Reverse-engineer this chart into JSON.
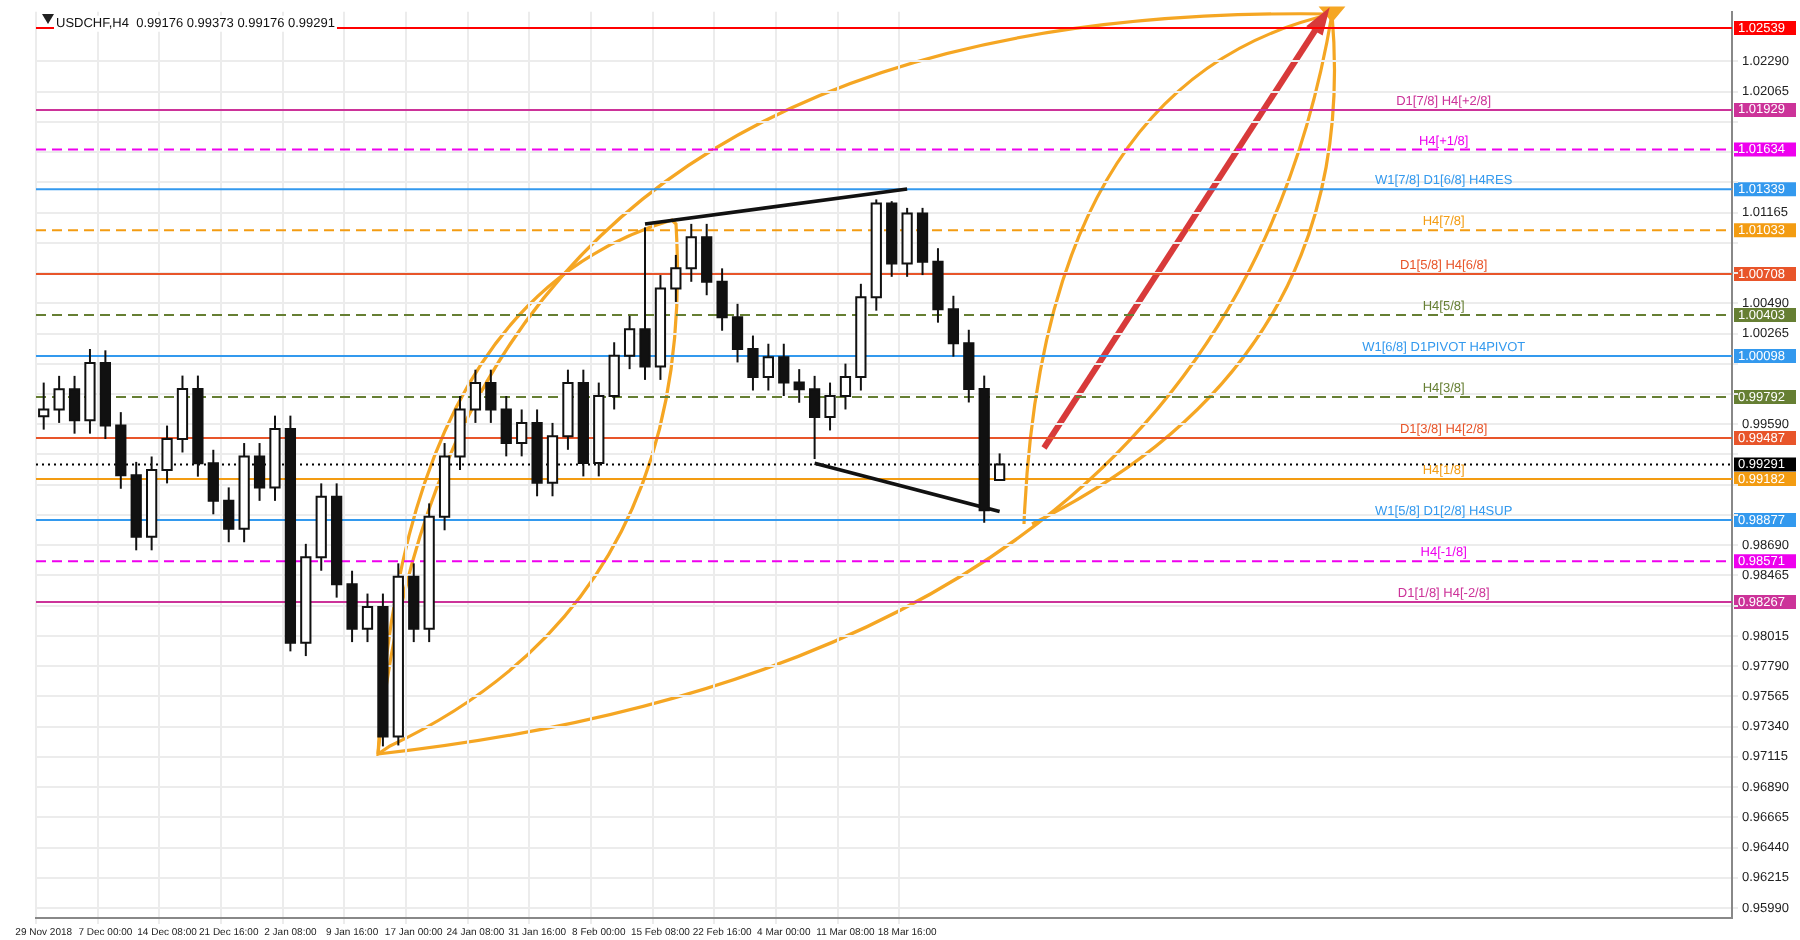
{
  "chart_data": {
    "type": "candlestick",
    "title": "USDCHF,H4  0.99176 0.99373 0.99176 0.99291",
    "categories": [
      "29 Nov 2018",
      null,
      null,
      null,
      "7 Dec 00:00",
      null,
      null,
      null,
      "14 Dec 08:00",
      null,
      null,
      null,
      "21 Dec 16:00",
      null,
      null,
      null,
      "2 Jan 08:00",
      null,
      null,
      null,
      "9 Jan 16:00",
      null,
      null,
      null,
      "17 Jan 00:00",
      null,
      null,
      null,
      "24 Jan 08:00",
      null,
      null,
      null,
      "31 Jan 16:00",
      null,
      null,
      null,
      "8 Feb 00:00",
      null,
      null,
      null,
      "15 Feb 08:00",
      null,
      null,
      null,
      "22 Feb 16:00",
      null,
      null,
      null,
      "4 Mar 00:00",
      null,
      null,
      null,
      "11 Mar 08:00",
      null,
      null,
      null,
      "18 Mar 16:00",
      null,
      null,
      null,
      null,
      null,
      null,
      null,
      null,
      null,
      null,
      null,
      null,
      null,
      null,
      null,
      null,
      null,
      null,
      null,
      null,
      null,
      null,
      null,
      null,
      null,
      null,
      null,
      null,
      null,
      null,
      null,
      null,
      null,
      null,
      null,
      null,
      null,
      null,
      null,
      null,
      null,
      null,
      null,
      null,
      null,
      null,
      null,
      null,
      null,
      null,
      null,
      null,
      null
    ],
    "ohlc": [
      [
        0.9965,
        0.999,
        0.9955,
        0.997
      ],
      [
        0.997,
        0.9995,
        0.996,
        0.9985
      ],
      [
        0.9985,
        0.9995,
        0.9952,
        0.9962
      ],
      [
        0.9962,
        1.0015,
        0.9952,
        1.00045
      ],
      [
        1.00045,
        1.0014,
        0.9948,
        0.9958
      ],
      [
        0.9958,
        0.9968,
        0.9911,
        0.9921
      ],
      [
        0.9921,
        0.9931,
        0.98652,
        0.98752
      ],
      [
        0.98752,
        0.9935,
        0.98652,
        0.9925
      ],
      [
        0.9925,
        0.9958,
        0.9915,
        0.9948
      ],
      [
        0.9948,
        0.99952,
        0.9938,
        0.99852
      ],
      [
        0.99852,
        0.99952,
        0.992,
        0.993
      ],
      [
        0.993,
        0.994,
        0.9892,
        0.9902
      ],
      [
        0.9902,
        0.9912,
        0.98712,
        0.98812
      ],
      [
        0.98812,
        0.9945,
        0.98712,
        0.9935
      ],
      [
        0.9935,
        0.9945,
        0.9902,
        0.9912
      ],
      [
        0.9912,
        0.99654,
        0.9902,
        0.99554
      ],
      [
        0.99554,
        0.99654,
        0.979,
        0.97965
      ],
      [
        0.97965,
        0.987,
        0.97865,
        0.986
      ],
      [
        0.986,
        0.9915,
        0.985,
        0.9905
      ],
      [
        0.9905,
        0.9915,
        0.983,
        0.984
      ],
      [
        0.984,
        0.985,
        0.97969,
        0.98069
      ],
      [
        0.98069,
        0.9833,
        0.97969,
        0.9823
      ],
      [
        0.9823,
        0.9833,
        0.97193,
        0.97267
      ],
      [
        0.97267,
        0.98555,
        0.972,
        0.98455
      ],
      [
        0.98455,
        0.98555,
        0.97969,
        0.98069
      ],
      [
        0.98069,
        0.99001,
        0.97969,
        0.98901
      ],
      [
        0.98901,
        0.9945,
        0.98801,
        0.9935
      ],
      [
        0.9935,
        0.998,
        0.9925,
        0.997
      ],
      [
        0.997,
        0.99996,
        0.996,
        0.99896
      ],
      [
        0.99896,
        0.99996,
        0.996,
        0.997
      ],
      [
        0.997,
        0.998,
        0.99351,
        0.99451
      ],
      [
        0.99451,
        0.997,
        0.99351,
        0.996
      ],
      [
        0.996,
        0.997,
        0.99054,
        0.99154
      ],
      [
        0.99154,
        0.996,
        0.99054,
        0.995
      ],
      [
        0.995,
        0.99996,
        0.994,
        0.99896
      ],
      [
        0.99896,
        0.99996,
        0.99202,
        0.99302
      ],
      [
        0.99302,
        0.999,
        0.99202,
        0.998
      ],
      [
        0.998,
        1.002,
        0.997,
        1.001
      ],
      [
        1.001,
        1.00397,
        1.0,
        1.00297
      ],
      [
        1.00297,
        1.01055,
        0.9992,
        1.0002
      ],
      [
        1.0002,
        1.007,
        0.9992,
        1.006
      ],
      [
        1.006,
        1.0085,
        1.005,
        1.0075
      ],
      [
        1.0075,
        1.01081,
        1.0065,
        1.00981
      ],
      [
        1.00981,
        1.01081,
        1.0055,
        1.0065
      ],
      [
        1.0065,
        1.0075,
        1.00286,
        1.00386
      ],
      [
        1.00386,
        1.00486,
        1.0005,
        1.0015
      ],
      [
        1.0015,
        1.0025,
        0.99841,
        0.99941
      ],
      [
        0.99941,
        1.00189,
        0.99841,
        1.00089
      ],
      [
        1.00089,
        1.00189,
        0.998,
        0.999
      ],
      [
        0.999,
        1.0,
        0.9975,
        0.9985
      ],
      [
        0.9985,
        0.9995,
        0.99331,
        0.99644
      ],
      [
        0.99644,
        0.999,
        0.99544,
        0.998
      ],
      [
        0.998,
        1.00041,
        0.997,
        0.99941
      ],
      [
        0.99941,
        1.00635,
        0.99841,
        1.00535
      ],
      [
        1.00535,
        1.01263,
        1.00435,
        1.01233
      ],
      [
        1.01233,
        1.0125,
        1.00687,
        1.00787
      ],
      [
        1.00787,
        1.012,
        1.00687,
        1.01159
      ],
      [
        1.01159,
        1.012,
        1.007,
        1.008
      ],
      [
        1.008,
        1.009,
        1.00346,
        1.00446
      ],
      [
        1.00446,
        1.00546,
        1.00093,
        1.00193
      ],
      [
        1.00193,
        1.00293,
        0.99752,
        0.99852
      ],
      [
        0.99852,
        0.99952,
        0.98857,
        0.9895
      ],
      [
        0.99176,
        0.99373,
        0.99176,
        0.99291
      ],
      null,
      null,
      null,
      null,
      null,
      null,
      null,
      null,
      null,
      null,
      null,
      null,
      null,
      null,
      null,
      null,
      null,
      null,
      null,
      null,
      null,
      null,
      null,
      null,
      null,
      null,
      null,
      null,
      null,
      null,
      null,
      null,
      null,
      null,
      null,
      null,
      null,
      null,
      null,
      null,
      null,
      null,
      null,
      null,
      null,
      null,
      null
    ],
    "ylim": [
      0.95916,
      1.02659
    ],
    "yticks": [
      {
        "value": 0.9599,
        "label": "0.95990"
      },
      0.96215,
      {
        "value": 0.9644,
        "label": "0.96440"
      },
      0.96665,
      {
        "value": 0.9689,
        "label": "0.96890"
      },
      0.97115,
      {
        "value": 0.9734,
        "label": "0.97340"
      },
      0.97565,
      {
        "value": 0.9779,
        "label": "0.97790"
      },
      0.98015,
      {
        "value": 0.9824,
        "label": null
      },
      0.98465,
      {
        "value": 0.9869,
        "label": "0.98690"
      },
      {
        "value": 0.98915,
        "label": null
      },
      {
        "value": 0.9914,
        "label": null
      },
      {
        "value": 0.99365,
        "label": null
      },
      {
        "value": 0.9959,
        "label": "0.99590"
      },
      {
        "value": 0.99815,
        "label": null
      },
      {
        "value": 1.0004,
        "label": null
      },
      1.00265,
      {
        "value": 1.0049,
        "label": "1.00490"
      },
      {
        "value": 1.00715,
        "label": null
      },
      {
        "value": 1.0094,
        "label": null
      },
      1.01165,
      {
        "value": 1.0139,
        "label": null
      },
      {
        "value": 1.01615,
        "label": null
      },
      {
        "value": 1.0184,
        "label": null
      },
      1.02065,
      {
        "value": 1.0229,
        "label": "1.02290"
      }
    ],
    "grid": true,
    "series": [
      {
        "type": "line",
        "color": "#111111",
        "values": [
          null,
          null,
          null,
          null,
          null,
          null,
          null,
          null,
          null,
          null,
          null,
          null,
          null,
          null,
          null,
          null,
          null,
          null,
          null,
          null,
          null,
          null,
          null,
          null,
          null,
          null,
          null,
          null,
          null,
          null,
          null,
          null,
          null,
          null,
          null,
          null,
          null,
          null,
          null,
          1.0108,
          null,
          null,
          null,
          null,
          null,
          null,
          null,
          null,
          null,
          null,
          null,
          null,
          null,
          null,
          null,
          null,
          1.0134,
          null,
          null,
          null,
          null,
          null,
          null,
          null,
          null,
          null,
          null,
          null,
          null,
          null,
          null,
          null,
          null,
          null,
          null,
          null,
          null,
          null,
          null,
          null,
          null,
          null,
          null,
          null,
          null,
          null,
          null,
          null,
          null,
          null,
          null,
          null,
          null,
          null,
          null,
          null,
          null,
          null,
          null,
          null,
          null,
          null,
          null,
          null,
          null,
          null,
          null,
          null,
          null,
          null
        ]
      },
      {
        "type": "line",
        "color": "#111111",
        "values": [
          null,
          null,
          null,
          null,
          null,
          null,
          null,
          null,
          null,
          null,
          null,
          null,
          null,
          null,
          null,
          null,
          null,
          null,
          null,
          null,
          null,
          null,
          null,
          null,
          null,
          null,
          null,
          null,
          null,
          null,
          null,
          null,
          null,
          null,
          null,
          null,
          null,
          null,
          null,
          null,
          null,
          null,
          null,
          null,
          null,
          null,
          null,
          null,
          null,
          null,
          0.993,
          null,
          null,
          null,
          null,
          null,
          null,
          null,
          null,
          null,
          null,
          null,
          0.9894,
          null,
          null,
          null,
          null,
          null,
          null,
          null,
          null,
          null,
          null,
          null,
          null,
          null,
          null,
          null,
          null,
          null,
          null,
          null,
          null,
          null,
          null,
          null,
          null,
          null,
          null,
          null,
          null,
          null,
          null,
          null,
          null,
          null,
          null,
          null,
          null,
          null,
          null,
          null,
          null,
          null,
          null,
          null,
          null,
          null,
          null,
          null
        ]
      }
    ],
    "ref_lines": [
      {
        "axis": "y",
        "value": 1.02539,
        "label": "1.02539",
        "color": "#ff0000"
      },
      {
        "axis": "y",
        "value": 1.01929,
        "label": "1.01929",
        "color": "#cc3399"
      },
      {
        "axis": "y",
        "value": 1.01634,
        "label": "1.01634",
        "color": "#ee00ee",
        "line_style": "dashed"
      },
      {
        "axis": "y",
        "value": 1.01339,
        "label": "1.01339",
        "color": "#3399ee"
      },
      {
        "axis": "y",
        "value": 1.01033,
        "label": "1.01033",
        "color": "#f39c12",
        "line_style": "dashed"
      },
      {
        "axis": "y",
        "value": 1.00708,
        "label": "1.00708",
        "color": "#e8552a"
      },
      {
        "axis": "y",
        "value": 1.00403,
        "label": "1.00403",
        "color": "#667f33",
        "line_style": "dashed"
      },
      {
        "axis": "y",
        "value": 1.00098,
        "label": "1.00098",
        "color": "#3399ee"
      },
      {
        "axis": "y",
        "value": 0.99792,
        "label": "0.99792",
        "color": "#667f33",
        "line_style": "dashed"
      },
      {
        "axis": "y",
        "value": 0.99487,
        "label": "0.99487",
        "color": "#e8552a"
      },
      {
        "axis": "y",
        "value": 0.99291,
        "label": "0.99291",
        "color": "#000000",
        "line_style": "dotted"
      },
      {
        "axis": "y",
        "value": 0.99182,
        "label": "0.99182",
        "color": "#f39c12"
      },
      {
        "axis": "y",
        "value": 0.98877,
        "label": "0.98877",
        "color": "#3399ee"
      },
      {
        "axis": "y",
        "value": 0.98571,
        "label": "0.98571",
        "color": "#ee00ee",
        "line_style": "dashed"
      },
      {
        "axis": "y",
        "value": 0.98267,
        "label": "0.98267",
        "color": "#cc3399"
      }
    ],
    "annotations": [
      {
        "text": "D1[7/8] H4[+2/8]",
        "y": 1.01929
      },
      {
        "text": "H4[+1/8]",
        "y": 1.01634
      },
      {
        "text": "W1[7/8] D1[6/8] H4RES",
        "y": 1.01339
      },
      {
        "text": "H4[7/8]",
        "y": 1.01033
      },
      {
        "text": "D1[5/8] H4[6/8]",
        "y": 1.00708
      },
      {
        "text": "H4[5/8]",
        "y": 1.00403
      },
      {
        "text": "W1[6/8] D1PIVOT H4PIVOT",
        "y": 1.00098
      },
      {
        "text": "H4[3/8]",
        "y": 0.99792
      },
      {
        "text": "D1[3/8] H4[2/8]",
        "y": 0.99487
      },
      {
        "text": "H4[1/8]",
        "y": 0.99182
      },
      {
        "text": "W1[5/8] D1[2/8] H4SUP",
        "y": 0.98877
      },
      {
        "text": "H4[-1/8]",
        "y": 0.98571
      },
      {
        "text": "D1[1/8] H4[-2/8]",
        "y": 0.98267
      }
    ]
  }
}
